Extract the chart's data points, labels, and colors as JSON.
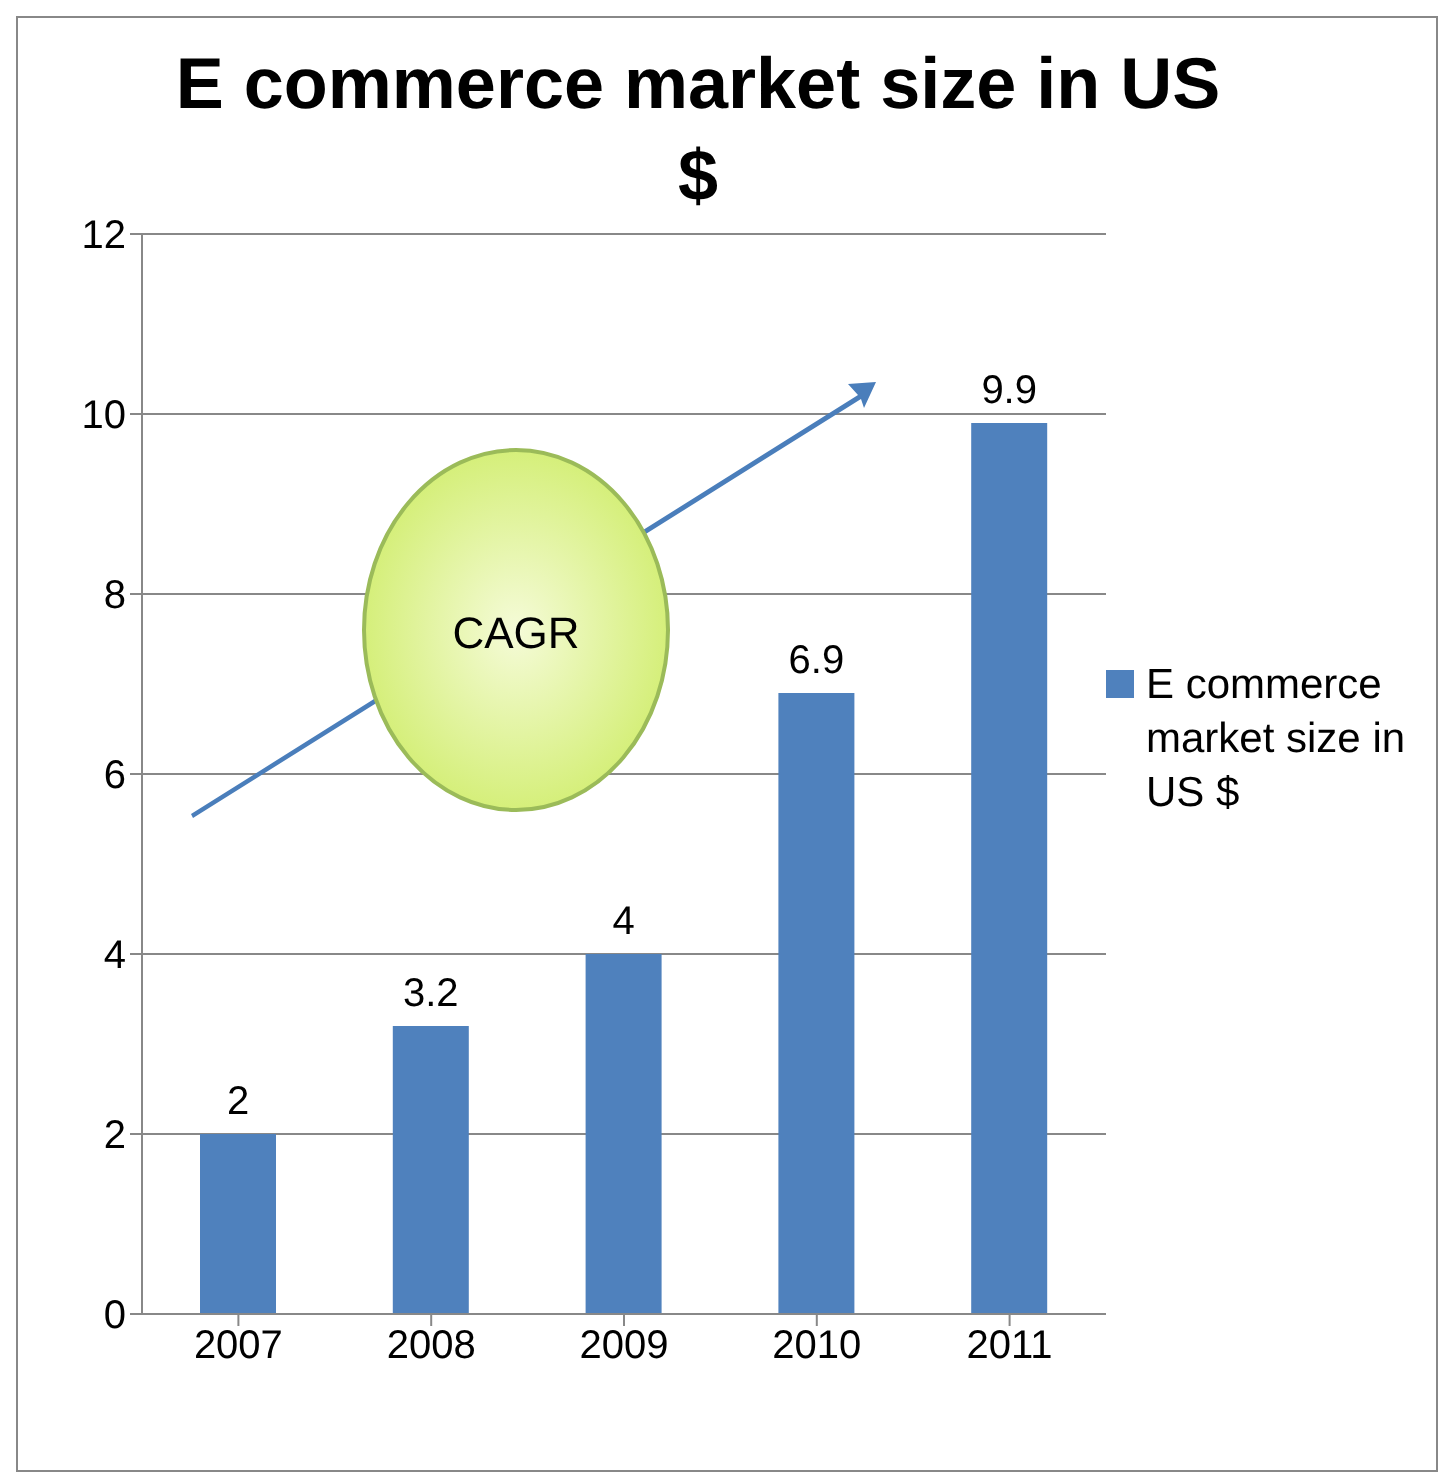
{
  "chart_data": {
    "type": "bar",
    "title": "E commerce market size in US $",
    "categories": [
      "2007",
      "2008",
      "2009",
      "2010",
      "2011"
    ],
    "series": [
      {
        "name": "E commerce market size in US $",
        "color": "#4f81bd",
        "values": [
          2,
          3.2,
          4,
          6.9,
          9.9
        ]
      }
    ],
    "ylim": [
      0,
      12
    ],
    "yticks": [
      0,
      2,
      4,
      6,
      8,
      10,
      12
    ],
    "grid": "y",
    "legend": "right",
    "data_labels": true,
    "annotations": [
      "CAGR"
    ]
  }
}
